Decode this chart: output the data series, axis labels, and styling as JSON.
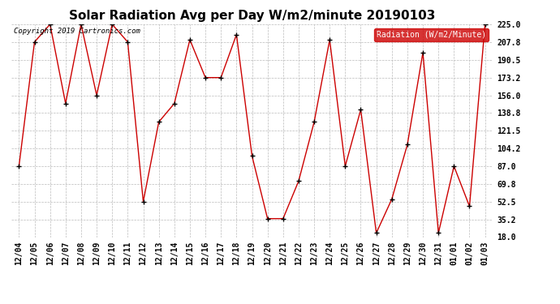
{
  "title": "Solar Radiation Avg per Day W/m2/minute 20190103",
  "copyright": "Copyright 2019 Cartronics.com",
  "legend_label": "Radiation (W/m2/Minute)",
  "dates": [
    "12/04",
    "12/05",
    "12/06",
    "12/07",
    "12/08",
    "12/09",
    "12/10",
    "12/11",
    "12/12",
    "12/13",
    "12/14",
    "12/15",
    "12/16",
    "12/17",
    "12/18",
    "12/19",
    "12/20",
    "12/21",
    "12/22",
    "12/23",
    "12/24",
    "12/25",
    "12/26",
    "12/27",
    "12/28",
    "12/29",
    "12/30",
    "12/31",
    "01/01",
    "01/02",
    "01/03"
  ],
  "values": [
    87.0,
    207.8,
    225.0,
    148.0,
    225.0,
    156.0,
    225.0,
    207.8,
    52.5,
    130.0,
    148.0,
    210.0,
    173.2,
    173.2,
    215.0,
    97.0,
    36.0,
    36.0,
    72.5,
    130.0,
    210.0,
    87.0,
    142.0,
    22.0,
    55.0,
    108.0,
    197.5,
    22.0,
    87.0,
    48.0,
    225.0
  ],
  "ylim": [
    18.0,
    225.0
  ],
  "yticks": [
    18.0,
    35.2,
    52.5,
    69.8,
    87.0,
    104.2,
    121.5,
    138.8,
    156.0,
    173.2,
    190.5,
    207.8,
    225.0
  ],
  "line_color": "#cc0000",
  "marker_color": "#000000",
  "bg_color": "#ffffff",
  "grid_color": "#bbbbbb",
  "title_fontsize": 11,
  "legend_bg": "#cc0000",
  "legend_text_color": "#ffffff"
}
